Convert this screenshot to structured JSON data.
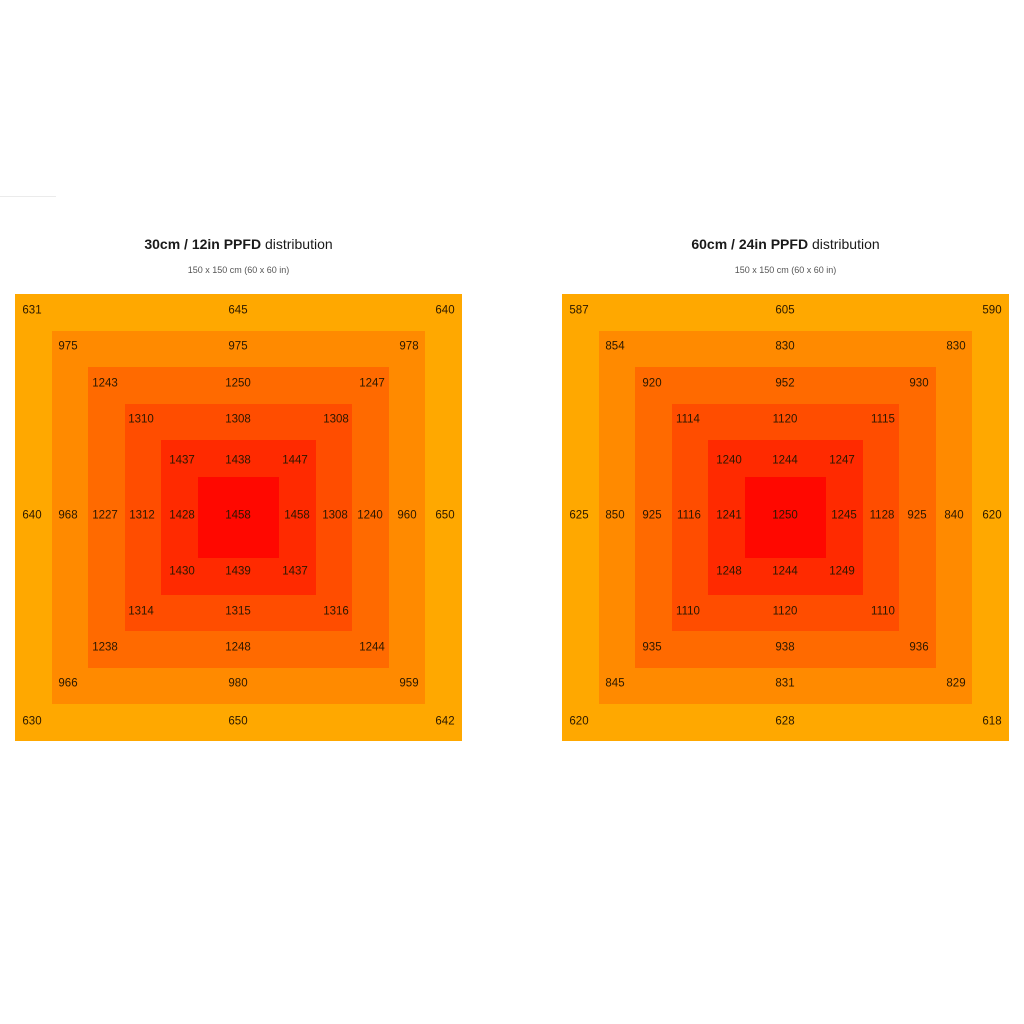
{
  "chart_data": [
    {
      "type": "heatmap",
      "title_bold": "30cm / 12in PPFD",
      "title_rest": "distribution",
      "subtitle": "150 x 150 cm (60 x 60 in)",
      "ring_colors": [
        "#ffa800",
        "#ff8a00",
        "#ff6a00",
        "#ff4d00",
        "#ff2a00",
        "#ff0800"
      ],
      "rows": [
        [
          631,
          null,
          null,
          645,
          null,
          null,
          640
        ],
        [
          975,
          null,
          975,
          null,
          978
        ],
        [
          1243,
          null,
          1250,
          null,
          1247
        ],
        [
          1310,
          1308,
          1308
        ],
        [
          1437,
          1438,
          1447
        ],
        [
          640,
          968,
          1227,
          1312,
          1428,
          1458,
          1458,
          1308,
          1240,
          960,
          650
        ],
        [
          1430,
          1439,
          1437
        ],
        [
          1314,
          1315,
          1316
        ],
        [
          1238,
          1248,
          1244
        ],
        [
          966,
          980,
          959
        ],
        [
          630,
          650,
          642
        ]
      ]
    },
    {
      "type": "heatmap",
      "title_bold": "60cm / 24in PPFD",
      "title_rest": "distribution",
      "subtitle": "150 x 150 cm (60 x 60 in)",
      "ring_colors": [
        "#ffa800",
        "#ff8a00",
        "#ff6a00",
        "#ff4d00",
        "#ff2a00",
        "#ff0800"
      ],
      "rows": [
        [
          587,
          605,
          590
        ],
        [
          854,
          830,
          830
        ],
        [
          920,
          952,
          930
        ],
        [
          1114,
          1120,
          1115
        ],
        [
          1240,
          1244,
          1247
        ],
        [
          625,
          850,
          925,
          1116,
          1241,
          1250,
          1245,
          1128,
          925,
          840,
          620
        ],
        [
          1248,
          1244,
          1249
        ],
        [
          1110,
          1120,
          1110
        ],
        [
          935,
          938,
          936
        ],
        [
          845,
          831,
          829
        ],
        [
          620,
          628,
          618
        ]
      ]
    }
  ]
}
